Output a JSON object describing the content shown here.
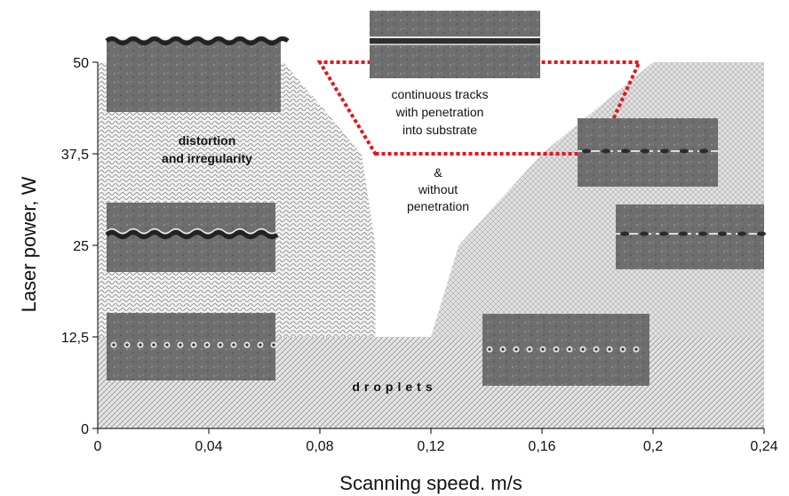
{
  "chart_data": {
    "type": "area",
    "title": "",
    "xlabel": "Scanning speed. m/s",
    "ylabel": "Laser power, W",
    "xlim": [
      0,
      0.24
    ],
    "ylim": [
      0,
      50
    ],
    "x_ticks": [
      "0",
      "0,04",
      "0,08",
      "0,12",
      "0,16",
      "0,2",
      "0,24"
    ],
    "y_ticks": [
      "0",
      "12,5",
      "25",
      "37,5",
      "50"
    ],
    "regions": [
      {
        "name": "distortion_irregularity",
        "label_lines": [
          "distortion",
          "and irregularity"
        ],
        "polygon": [
          [
            0,
            12.5
          ],
          [
            0,
            50
          ],
          [
            0.067,
            50
          ],
          [
            0.095,
            37.5
          ],
          [
            0.1,
            25
          ],
          [
            0.1,
            12.5
          ]
        ]
      },
      {
        "name": "droplets",
        "label": "droplets",
        "polygon": [
          [
            0,
            0
          ],
          [
            0.24,
            0
          ],
          [
            0.24,
            12.5
          ],
          [
            0,
            12.5
          ]
        ]
      },
      {
        "name": "right_hatched",
        "polygon": [
          [
            0.12,
            12.5
          ],
          [
            0.13,
            25
          ],
          [
            0.16,
            37.5
          ],
          [
            0.2,
            50
          ],
          [
            0.24,
            50
          ],
          [
            0.24,
            12.5
          ]
        ]
      },
      {
        "name": "continuous_tracks",
        "label_lines": [
          "continuous tracks",
          "with penetration",
          "into substrate"
        ],
        "polygon": [
          [
            0.1,
            37.5
          ],
          [
            0.18,
            37.5
          ],
          [
            0.195,
            50
          ],
          [
            0.08,
            50
          ]
        ],
        "color": "#e8141b"
      },
      {
        "name": "without_penetration",
        "label_lines": [
          "&",
          "without",
          "penetration"
        ]
      }
    ],
    "grid": false,
    "legend": "none"
  },
  "photos": [
    {
      "name": "track-photo-1"
    },
    {
      "name": "track-photo-2"
    },
    {
      "name": "track-photo-3"
    },
    {
      "name": "track-photo-4"
    },
    {
      "name": "track-photo-5"
    },
    {
      "name": "track-photo-6"
    },
    {
      "name": "track-photo-7"
    }
  ]
}
